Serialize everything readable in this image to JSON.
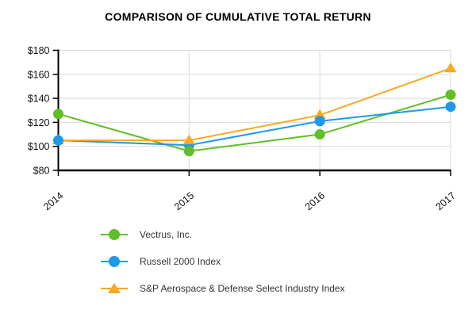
{
  "title": "COMPARISON OF CUMULATIVE TOTAL RETURN",
  "chart_data": {
    "type": "line",
    "x": [
      "2014",
      "2015",
      "2016",
      "2017"
    ],
    "series": [
      {
        "name": "Vectrus, Inc.",
        "marker": "circle",
        "color": "#61be26",
        "values": [
          127,
          96,
          110,
          143
        ]
      },
      {
        "name": "Russell 2000 Index",
        "marker": "circle",
        "color": "#1e99e9",
        "values": [
          105,
          101,
          121,
          133
        ]
      },
      {
        "name": "S&P Aerospace & Defense Select Industry Index",
        "marker": "triangle",
        "color": "#f8a823",
        "values": [
          105,
          105,
          126,
          165
        ]
      }
    ],
    "ylim": [
      80,
      180
    ],
    "ytick_step": 20,
    "ytick_prefix": "$",
    "ytick_labels": [
      "$80",
      "$100",
      "$120",
      "$140",
      "$160",
      "$180"
    ],
    "grid": true,
    "gridline_color": "#d9d9d9",
    "axis_color": "#000000",
    "legend_position": "bottom-left"
  }
}
